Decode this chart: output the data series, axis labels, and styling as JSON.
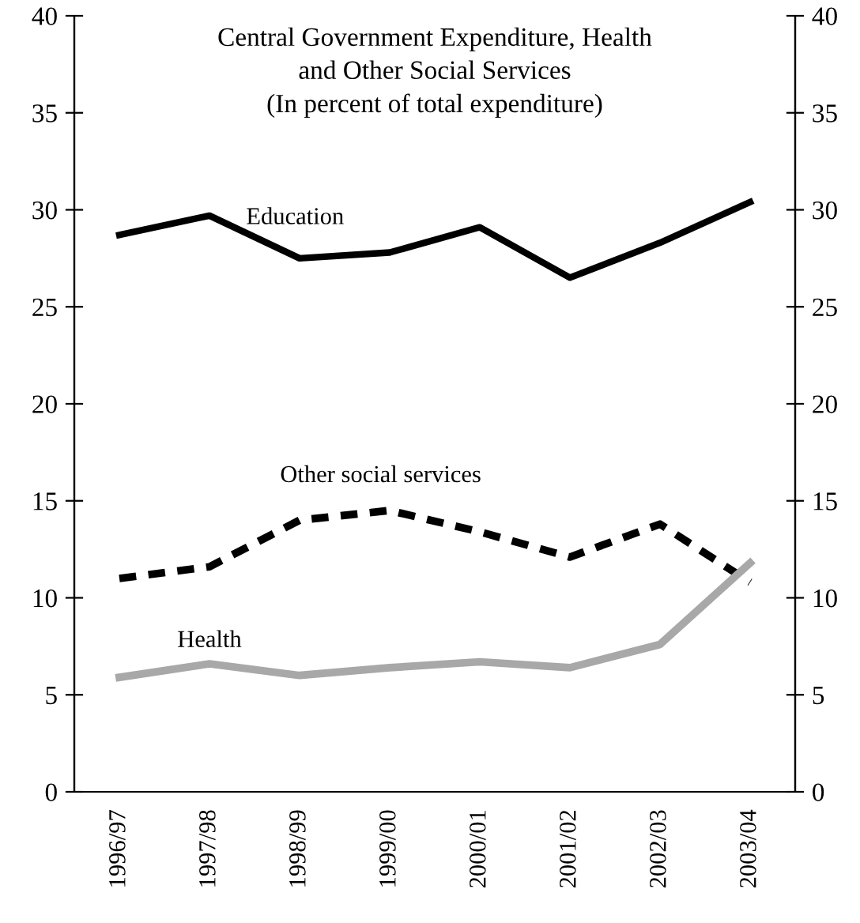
{
  "chart_data": {
    "type": "line",
    "title": "Central Government Expenditure, Health\nand Other Social Services\n(In percent of total expenditure)",
    "categories": [
      "1996/97",
      "1997/98",
      "1998/99",
      "1999/00",
      "2000/01",
      "2001/02",
      "2002/03",
      "2003/04"
    ],
    "series": [
      {
        "name": "Education",
        "color": "#000000",
        "line_style": "solid",
        "values": [
          28.7,
          29.7,
          27.5,
          27.8,
          29.1,
          26.5,
          28.3,
          30.4
        ]
      },
      {
        "name": "Other social services",
        "color": "#000000",
        "line_style": "dashed",
        "values": [
          11.0,
          11.6,
          14.0,
          14.5,
          13.4,
          12.1,
          13.8,
          10.8
        ]
      },
      {
        "name": "Health",
        "color": "#a8a8a8",
        "line_style": "solid",
        "values": [
          5.9,
          6.6,
          6.0,
          6.4,
          6.7,
          6.4,
          7.6,
          11.8
        ]
      }
    ],
    "ylim": [
      0,
      40
    ],
    "yticks": [
      0,
      5,
      10,
      15,
      20,
      25,
      30,
      35,
      40
    ],
    "y2lim": [
      0,
      40
    ],
    "y2ticks": [
      0,
      5,
      10,
      15,
      20,
      25,
      30,
      35,
      40
    ],
    "grid": false,
    "legend": false,
    "marker": "none"
  }
}
